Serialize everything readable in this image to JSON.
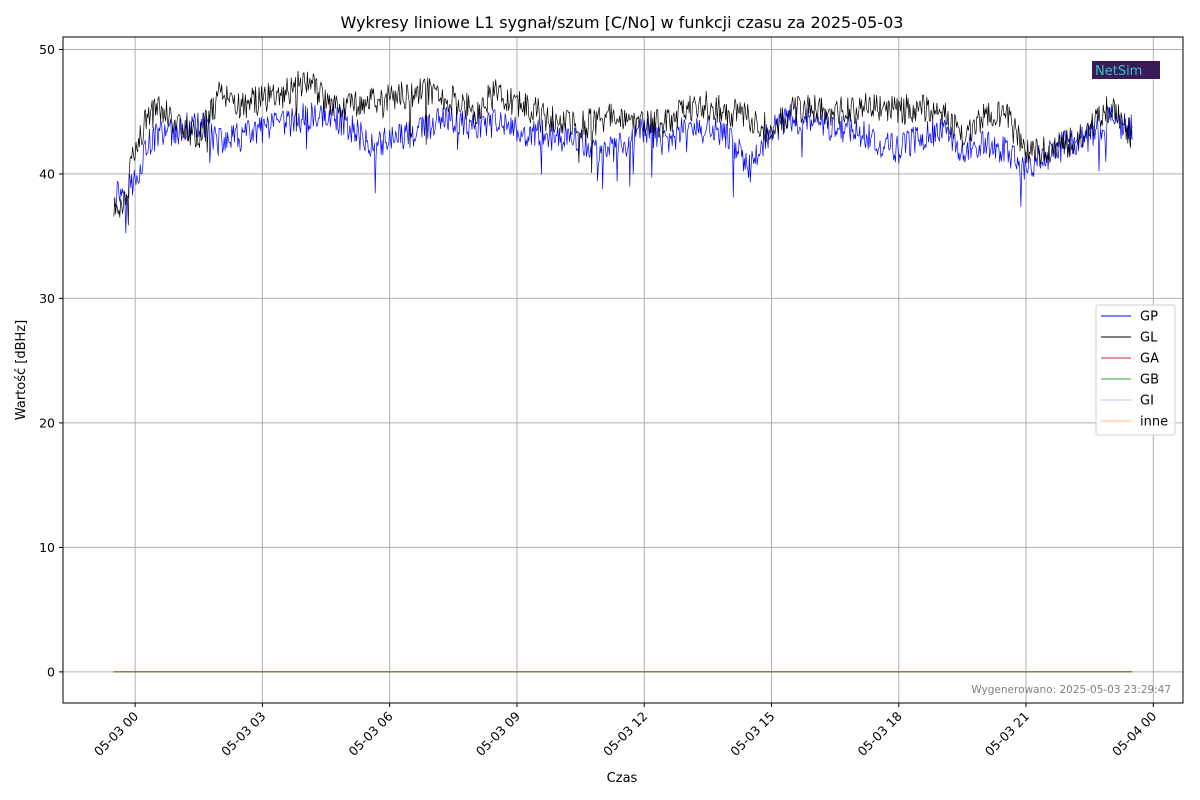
{
  "chart_data": {
    "type": "line",
    "title": "Wykresy liniowe L1 sygnał/szum [C/No] w funkcji czasu za 2025-05-03",
    "xlabel": "Czas",
    "ylabel": "Wartość [dBHz]",
    "x_tick_labels": [
      "05-03 00",
      "05-03 03",
      "05-03 06",
      "05-03 09",
      "05-03 12",
      "05-03 15",
      "05-03 18",
      "05-03 21",
      "05-04 00"
    ],
    "x_range_hours": [
      -1.7,
      24.7
    ],
    "x_start": "2025-05-02 23:30",
    "x_end": "2025-05-03 23:30",
    "ylim": [
      -2.5,
      51
    ],
    "y_ticks": [
      0,
      10,
      20,
      30,
      40,
      50
    ],
    "grid": true,
    "legend_position": "center-right",
    "series": [
      {
        "name": "GP",
        "color": "#0000ff",
        "hours": [
          -0.5,
          -0.25,
          0,
          0.3,
          0.6,
          1,
          1.5,
          2,
          2.5,
          3,
          3.5,
          4,
          4.5,
          5,
          5.5,
          6,
          6.5,
          7,
          7.5,
          8,
          8.5,
          9,
          9.5,
          10,
          10.5,
          11,
          11.5,
          12,
          12.5,
          13,
          13.5,
          14,
          14.5,
          15,
          15.5,
          16,
          16.5,
          17,
          17.5,
          18,
          18.5,
          19,
          19.5,
          20,
          20.5,
          21,
          21.5,
          22,
          22.5,
          23,
          23.5
        ],
        "values": [
          38.5,
          38.7,
          39.5,
          42.5,
          43.2,
          43.5,
          44.0,
          42.5,
          43.0,
          43.5,
          44.0,
          44.5,
          44.8,
          44.0,
          42.5,
          42.8,
          43.2,
          44.0,
          44.3,
          43.8,
          44.0,
          43.5,
          43.2,
          43.0,
          42.5,
          41.8,
          42.2,
          43.5,
          42.3,
          43.8,
          43.5,
          43.0,
          40.5,
          43.5,
          44.5,
          44.0,
          43.8,
          43.5,
          42.5,
          42.0,
          43.0,
          43.5,
          42.0,
          42.3,
          41.8,
          40.5,
          41.5,
          42.5,
          43.0,
          44.5,
          43.5
        ]
      },
      {
        "name": "GL",
        "color": "#000000",
        "hours": [
          -0.5,
          -0.25,
          0,
          0.3,
          0.6,
          1,
          1.5,
          2,
          2.5,
          3,
          3.5,
          4,
          4.5,
          5,
          5.5,
          6,
          6.5,
          7,
          7.5,
          8,
          8.5,
          9,
          9.5,
          10,
          10.5,
          11,
          11.5,
          12,
          12.5,
          13,
          13.5,
          14,
          14.5,
          15,
          15.5,
          16,
          16.5,
          17,
          17.5,
          18,
          18.5,
          19,
          19.5,
          20,
          20.5,
          21,
          21.5,
          22,
          22.5,
          23,
          23.5
        ],
        "values": [
          37.0,
          38.0,
          42.0,
          44.5,
          45.5,
          44.0,
          43.0,
          46.5,
          45.5,
          46.0,
          46.5,
          47.5,
          46.0,
          45.5,
          46.0,
          46.0,
          46.5,
          46.8,
          46.0,
          45.0,
          46.5,
          45.5,
          45.0,
          44.0,
          43.8,
          44.5,
          44.8,
          44.0,
          44.0,
          45.2,
          45.5,
          45.0,
          44.5,
          43.5,
          45.0,
          45.3,
          45.0,
          45.2,
          45.5,
          45.0,
          45.5,
          45.0,
          43.0,
          44.5,
          45.0,
          41.5,
          42.0,
          42.5,
          43.5,
          45.5,
          43.0
        ]
      },
      {
        "name": "GA",
        "color": "#d62728",
        "hours": [
          -0.5,
          23.5
        ],
        "values": [
          0,
          0
        ]
      },
      {
        "name": "GB",
        "color": "#2ca02c",
        "hours": [
          -0.5,
          23.5
        ],
        "values": [
          0,
          0
        ]
      },
      {
        "name": "GI",
        "color": "#aec7e8",
        "hours": [
          -0.5,
          23.5
        ],
        "values": [
          0,
          0
        ]
      },
      {
        "name": "inne",
        "color": "#ffbb78",
        "hours": [
          -0.5,
          23.5
        ],
        "values": [
          0,
          0
        ]
      }
    ]
  },
  "logo": {
    "text": "NetSim",
    "background": "#3b1a5a"
  },
  "footer": {
    "generated": "Wygenerowano: 2025-05-03 23:29:47"
  },
  "colors": {
    "grid": "#b0b0b0",
    "flat_line": "#8c7a4a"
  }
}
